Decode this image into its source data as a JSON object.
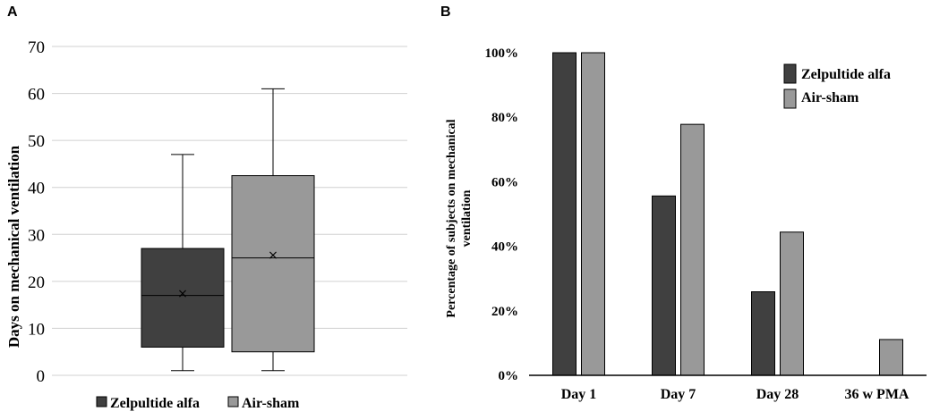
{
  "panels": {
    "a_label": "A",
    "b_label": "B"
  },
  "colors": {
    "zelpultide": "#404040",
    "air_sham": "#999999",
    "grid": "#d0d0d0",
    "axis": "#000000"
  },
  "chart_data": [
    {
      "type": "box",
      "panel": "A",
      "ylabel": "Days on mechanical ventilation",
      "ylim": [
        0,
        70
      ],
      "yticks": [
        "0",
        "10",
        "20",
        "30",
        "40",
        "50",
        "60",
        "70"
      ],
      "legend_position": "bottom",
      "series": [
        {
          "name": "Zelpultide alfa",
          "min": 1,
          "q1": 6,
          "median": 17,
          "q3": 27,
          "max": 47,
          "mean": 17.5,
          "mean_marker": "×"
        },
        {
          "name": "Air-sham",
          "min": 1,
          "q1": 5,
          "median": 25,
          "q3": 42.5,
          "max": 61,
          "mean": 25.7,
          "mean_marker": "×"
        }
      ]
    },
    {
      "type": "bar",
      "panel": "B",
      "ylabel": "Percentage of subjects on mechanical ventilation",
      "ylabel_lines": [
        "Percentage of subjects on mechanical",
        "ventilation"
      ],
      "categories": [
        "Day 1",
        "Day 7",
        "Day 28",
        "36 w PMA"
      ],
      "ylim": [
        0,
        100
      ],
      "yticks": [
        "0%",
        "20%",
        "40%",
        "60%",
        "80%",
        "100%"
      ],
      "legend_position": "top-right",
      "series": [
        {
          "name": "Zelpultide alfa",
          "values": [
            100,
            55.6,
            25.9,
            0
          ]
        },
        {
          "name": "Air-sham",
          "values": [
            100,
            77.8,
            44.4,
            11.1
          ]
        }
      ]
    }
  ]
}
